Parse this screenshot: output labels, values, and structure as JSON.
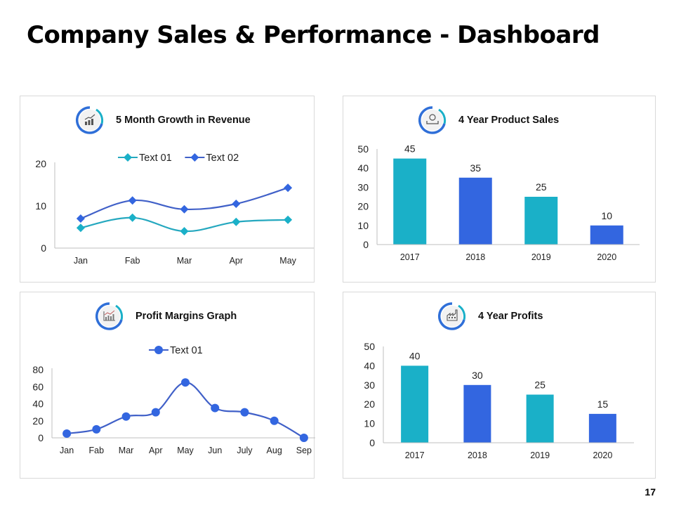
{
  "page": {
    "title": "Company Sales & Performance - Dashboard",
    "page_number": "17"
  },
  "panels": {
    "revenue": {
      "title": "5 Month Growth in Revenue",
      "icon": "growth-chart-icon"
    },
    "sales": {
      "title": "4 Year Product Sales",
      "icon": "money-hand-icon"
    },
    "margins": {
      "title": "Profit Margins Graph",
      "icon": "bar-line-chart-icon"
    },
    "profits": {
      "title": "4 Year Profits",
      "icon": "factory-icon"
    }
  },
  "colors": {
    "teal": "#1AB0C8",
    "blue": "#3366E0",
    "line_teal": "#25A8BF",
    "line_blue": "#4060C8",
    "axis": "#BFBFBF",
    "panel_border": "#D9D9D9"
  },
  "chart_data": [
    {
      "id": "revenue",
      "type": "line",
      "title": "5 Month Growth in Revenue",
      "categories": [
        "Jan",
        "Fab",
        "Mar",
        "Apr",
        "May"
      ],
      "series": [
        {
          "name": "Text 01",
          "values": [
            4.8,
            7.2,
            4.0,
            6.2,
            6.7
          ],
          "marker": "diamond",
          "color": "#1AB0C8",
          "line_color": "#25A8BF"
        },
        {
          "name": "Text 02",
          "values": [
            7.0,
            11.3,
            9.2,
            10.5,
            14.3
          ],
          "marker": "diamond",
          "color": "#3366E0",
          "line_color": "#4060C8"
        }
      ],
      "yticks": [
        0,
        10,
        20
      ],
      "ylim": [
        0,
        20
      ],
      "xlabel": "",
      "ylabel": "",
      "legend": "top",
      "grid": false,
      "smooth": true
    },
    {
      "id": "sales",
      "type": "bar",
      "title": "4 Year Product Sales",
      "categories": [
        "2017",
        "2018",
        "2019",
        "2020"
      ],
      "values": [
        45,
        35,
        25,
        10
      ],
      "bar_colors": [
        "#1AB0C8",
        "#3366E0",
        "#1AB0C8",
        "#3366E0"
      ],
      "data_labels": [
        "45",
        "35",
        "25",
        "10"
      ],
      "yticks": [
        0,
        10,
        20,
        30,
        40,
        50
      ],
      "ylim": [
        0,
        50
      ],
      "xlabel": "",
      "ylabel": "",
      "grid": false
    },
    {
      "id": "margins",
      "type": "line",
      "title": "Profit Margins Graph",
      "categories": [
        "Jan",
        "Fab",
        "Mar",
        "Apr",
        "May",
        "Jun",
        "July",
        "Aug",
        "Sep"
      ],
      "series": [
        {
          "name": "Text 01",
          "values": [
            5,
            10,
            25,
            30,
            65,
            35,
            30,
            20,
            0
          ],
          "marker": "circle",
          "color": "#3366E0",
          "line_color": "#4060C8"
        }
      ],
      "yticks": [
        0,
        20,
        40,
        60,
        80
      ],
      "ylim": [
        0,
        80
      ],
      "xlabel": "",
      "ylabel": "",
      "legend": "top",
      "grid": false,
      "smooth": true
    },
    {
      "id": "profits",
      "type": "bar",
      "title": "4 Year Profits",
      "categories": [
        "2017",
        "2018",
        "2019",
        "2020"
      ],
      "values": [
        40,
        30,
        25,
        15
      ],
      "bar_colors": [
        "#1AB0C8",
        "#3366E0",
        "#1AB0C8",
        "#3366E0"
      ],
      "data_labels": [
        "40",
        "30",
        "25",
        "15"
      ],
      "yticks": [
        0,
        10,
        20,
        30,
        40,
        50
      ],
      "ylim": [
        0,
        50
      ],
      "xlabel": "",
      "ylabel": "",
      "grid": false
    }
  ]
}
